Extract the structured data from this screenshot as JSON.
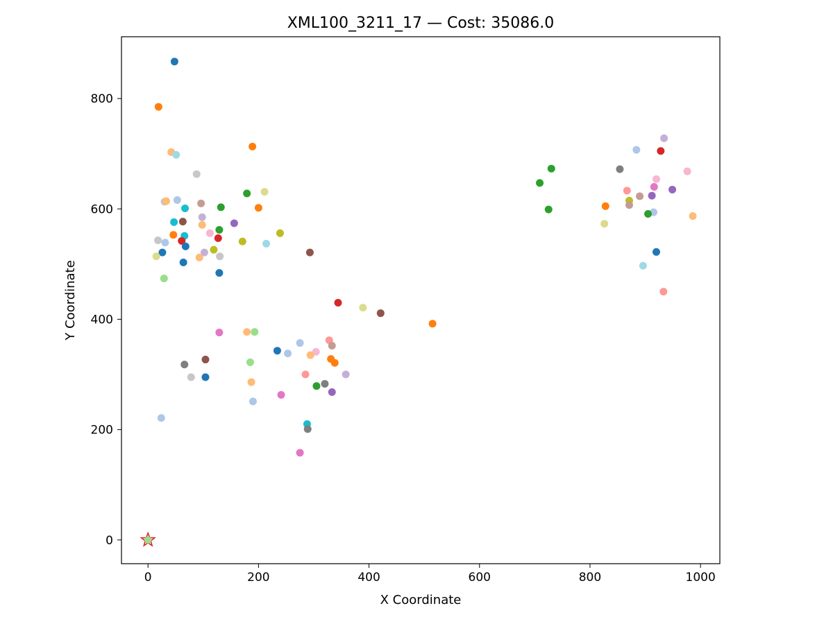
{
  "chart_data": {
    "type": "scatter",
    "title": "XML100_3211_17  —  Cost: 35086.0",
    "xlabel": "X Coordinate",
    "ylabel": "Y Coordinate",
    "xlim": [
      -48,
      1035
    ],
    "ylim": [
      -43,
      912
    ],
    "xticks": [
      0,
      200,
      400,
      600,
      800,
      1000
    ],
    "yticks": [
      0,
      200,
      400,
      600,
      800
    ],
    "grid": false,
    "legend": "none",
    "depot": {
      "x": 0,
      "y": 0,
      "marker": "star",
      "edge_color": "#d62728",
      "fill_color": "#98df8a"
    },
    "points": [
      {
        "x": 48,
        "y": 867,
        "color": "#1f77b4"
      },
      {
        "x": 19,
        "y": 785,
        "color": "#ff7f0e"
      },
      {
        "x": 189,
        "y": 713,
        "color": "#ff7f0e"
      },
      {
        "x": 42,
        "y": 703,
        "color": "#ffbb78"
      },
      {
        "x": 51,
        "y": 698,
        "color": "#9edae5"
      },
      {
        "x": 88,
        "y": 663,
        "color": "#c7c7c7"
      },
      {
        "x": 211,
        "y": 631,
        "color": "#dbdb8d"
      },
      {
        "x": 179,
        "y": 628,
        "color": "#2ca02c"
      },
      {
        "x": 53,
        "y": 616,
        "color": "#aec7e8"
      },
      {
        "x": 30,
        "y": 613,
        "color": "#c7c7c7"
      },
      {
        "x": 33,
        "y": 614,
        "color": "#ffbb78"
      },
      {
        "x": 96,
        "y": 610,
        "color": "#c49c94"
      },
      {
        "x": 132,
        "y": 603,
        "color": "#2ca02c"
      },
      {
        "x": 200,
        "y": 602,
        "color": "#ff7f0e"
      },
      {
        "x": 67,
        "y": 601,
        "color": "#17becf"
      },
      {
        "x": 98,
        "y": 585,
        "color": "#c5b0d5"
      },
      {
        "x": 47,
        "y": 576,
        "color": "#17becf"
      },
      {
        "x": 63,
        "y": 577,
        "color": "#8c564b"
      },
      {
        "x": 156,
        "y": 574,
        "color": "#9467bd"
      },
      {
        "x": 98,
        "y": 571,
        "color": "#ffbb78"
      },
      {
        "x": 129,
        "y": 562,
        "color": "#2ca02c"
      },
      {
        "x": 112,
        "y": 556,
        "color": "#f7b6d2"
      },
      {
        "x": 239,
        "y": 556,
        "color": "#bcbd22"
      },
      {
        "x": 46,
        "y": 553,
        "color": "#ff7f0e"
      },
      {
        "x": 66,
        "y": 551,
        "color": "#17becf"
      },
      {
        "x": 127,
        "y": 547,
        "color": "#d62728"
      },
      {
        "x": 18,
        "y": 543,
        "color": "#c7c7c7"
      },
      {
        "x": 61,
        "y": 542,
        "color": "#d62728"
      },
      {
        "x": 171,
        "y": 541,
        "color": "#bcbd22"
      },
      {
        "x": 31,
        "y": 539,
        "color": "#aec7e8"
      },
      {
        "x": 214,
        "y": 537,
        "color": "#9edae5"
      },
      {
        "x": 68,
        "y": 532,
        "color": "#1f77b4"
      },
      {
        "x": 119,
        "y": 526,
        "color": "#bcbd22"
      },
      {
        "x": 102,
        "y": 521,
        "color": "#c5b0d5"
      },
      {
        "x": 26,
        "y": 521,
        "color": "#1f77b4"
      },
      {
        "x": 293,
        "y": 521,
        "color": "#8c564b"
      },
      {
        "x": 15,
        "y": 514,
        "color": "#dbdb8d"
      },
      {
        "x": 130,
        "y": 514,
        "color": "#c7c7c7"
      },
      {
        "x": 93,
        "y": 512,
        "color": "#ffbb78"
      },
      {
        "x": 64,
        "y": 503,
        "color": "#1f77b4"
      },
      {
        "x": 129,
        "y": 484,
        "color": "#1f77b4"
      },
      {
        "x": 29,
        "y": 474,
        "color": "#98df8a"
      },
      {
        "x": 344,
        "y": 430,
        "color": "#d62728"
      },
      {
        "x": 389,
        "y": 421,
        "color": "#dbdb8d"
      },
      {
        "x": 421,
        "y": 411,
        "color": "#8c564b"
      },
      {
        "x": 515,
        "y": 392,
        "color": "#ff7f0e"
      },
      {
        "x": 129,
        "y": 376,
        "color": "#e377c2"
      },
      {
        "x": 179,
        "y": 377,
        "color": "#ffbb78"
      },
      {
        "x": 193,
        "y": 377,
        "color": "#98df8a"
      },
      {
        "x": 275,
        "y": 357,
        "color": "#aec7e8"
      },
      {
        "x": 328,
        "y": 362,
        "color": "#ff9896"
      },
      {
        "x": 333,
        "y": 352,
        "color": "#c49c94"
      },
      {
        "x": 234,
        "y": 343,
        "color": "#1f77b4"
      },
      {
        "x": 253,
        "y": 338,
        "color": "#aec7e8"
      },
      {
        "x": 304,
        "y": 341,
        "color": "#f7b6d2"
      },
      {
        "x": 294,
        "y": 335,
        "color": "#ffbb78"
      },
      {
        "x": 331,
        "y": 328,
        "color": "#ff7f0e"
      },
      {
        "x": 338,
        "y": 321,
        "color": "#ff7f0e"
      },
      {
        "x": 104,
        "y": 327,
        "color": "#8c564b"
      },
      {
        "x": 66,
        "y": 318,
        "color": "#7f7f7f"
      },
      {
        "x": 185,
        "y": 322,
        "color": "#98df8a"
      },
      {
        "x": 285,
        "y": 300,
        "color": "#ff9896"
      },
      {
        "x": 358,
        "y": 300,
        "color": "#c5b0d5"
      },
      {
        "x": 78,
        "y": 295,
        "color": "#c7c7c7"
      },
      {
        "x": 104,
        "y": 295,
        "color": "#1f77b4"
      },
      {
        "x": 187,
        "y": 286,
        "color": "#ffbb78"
      },
      {
        "x": 320,
        "y": 283,
        "color": "#7f7f7f"
      },
      {
        "x": 305,
        "y": 279,
        "color": "#2ca02c"
      },
      {
        "x": 333,
        "y": 268,
        "color": "#9467bd"
      },
      {
        "x": 241,
        "y": 263,
        "color": "#e377c2"
      },
      {
        "x": 190,
        "y": 251,
        "color": "#aec7e8"
      },
      {
        "x": 24,
        "y": 221,
        "color": "#aec7e8"
      },
      {
        "x": 288,
        "y": 210,
        "color": "#17becf"
      },
      {
        "x": 289,
        "y": 201,
        "color": "#7f7f7f"
      },
      {
        "x": 275,
        "y": 158,
        "color": "#e377c2"
      },
      {
        "x": 934,
        "y": 728,
        "color": "#c5b0d5"
      },
      {
        "x": 884,
        "y": 707,
        "color": "#aec7e8"
      },
      {
        "x": 928,
        "y": 705,
        "color": "#d62728"
      },
      {
        "x": 730,
        "y": 673,
        "color": "#2ca02c"
      },
      {
        "x": 854,
        "y": 672,
        "color": "#7f7f7f"
      },
      {
        "x": 976,
        "y": 668,
        "color": "#f7b6d2"
      },
      {
        "x": 920,
        "y": 654,
        "color": "#f7b6d2"
      },
      {
        "x": 709,
        "y": 647,
        "color": "#2ca02c"
      },
      {
        "x": 916,
        "y": 640,
        "color": "#e377c2"
      },
      {
        "x": 949,
        "y": 635,
        "color": "#9467bd"
      },
      {
        "x": 867,
        "y": 633,
        "color": "#ff9896"
      },
      {
        "x": 890,
        "y": 623,
        "color": "#c49c94"
      },
      {
        "x": 912,
        "y": 624,
        "color": "#9467bd"
      },
      {
        "x": 871,
        "y": 615,
        "color": "#bcbd22"
      },
      {
        "x": 871,
        "y": 607,
        "color": "#c49c94"
      },
      {
        "x": 828,
        "y": 605,
        "color": "#ff7f0e"
      },
      {
        "x": 725,
        "y": 599,
        "color": "#2ca02c"
      },
      {
        "x": 915,
        "y": 594,
        "color": "#aec7e8"
      },
      {
        "x": 905,
        "y": 591,
        "color": "#2ca02c"
      },
      {
        "x": 986,
        "y": 587,
        "color": "#ffbb78"
      },
      {
        "x": 826,
        "y": 573,
        "color": "#dbdb8d"
      },
      {
        "x": 920,
        "y": 522,
        "color": "#1f77b4"
      },
      {
        "x": 896,
        "y": 497,
        "color": "#9edae5"
      },
      {
        "x": 933,
        "y": 450,
        "color": "#ff9896"
      }
    ]
  }
}
